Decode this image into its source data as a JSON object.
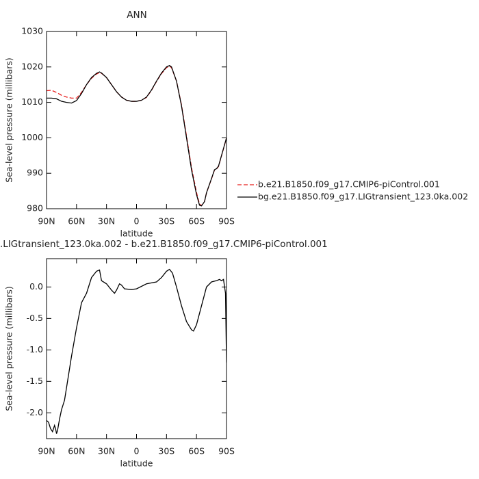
{
  "chart_data": [
    {
      "type": "line",
      "title": "ANN",
      "xlabel": "latitude",
      "ylabel": "Sea-level pressure (millibars)",
      "x": [
        90,
        85,
        80,
        75,
        70,
        65,
        60,
        55,
        50,
        45,
        40,
        37,
        35,
        30,
        25,
        20,
        15,
        10,
        5,
        0,
        -5,
        -10,
        -15,
        -20,
        -25,
        -30,
        -33,
        -35,
        -40,
        -45,
        -50,
        -55,
        -60,
        -63,
        -65,
        -68,
        -70,
        -75,
        -78,
        -80,
        -82,
        -85,
        -88,
        -90
      ],
      "series": [
        {
          "name": "b.e21.B1850.f09_g17.CMIP6-piControl.001",
          "color": "#e8201f",
          "dash": true,
          "values": [
            1013.3,
            1013.4,
            1012.8,
            1012,
            1011.5,
            1011.2,
            1011.2,
            1012.8,
            1015,
            1016.8,
            1018,
            1018.4,
            1018.2,
            1017,
            1015,
            1013,
            1011.5,
            1010.6,
            1010.3,
            1010.3,
            1010.6,
            1011.4,
            1013.4,
            1015.9,
            1018.1,
            1019.8,
            1020.2,
            1019.8,
            1016,
            1009.3,
            1000.5,
            991.6,
            984.6,
            981.3,
            980.9,
            982,
            984.5,
            988.4,
            990.9,
            991.2,
            991.9,
            994.9,
            997.9,
            1000
          ]
        },
        {
          "name": "bg.e21.B1850.f09_g17.LIGtransient_123.0ka.002",
          "color": "#000000",
          "dash": false,
          "values": [
            1011.2,
            1011.2,
            1011,
            1010.3,
            1010,
            1009.8,
            1010.5,
            1012.5,
            1015,
            1017,
            1018.2,
            1018.6,
            1018.3,
            1017,
            1015,
            1013,
            1011.5,
            1010.6,
            1010.3,
            1010.3,
            1010.6,
            1011.5,
            1013.5,
            1016,
            1018.3,
            1020,
            1020.4,
            1020,
            1016,
            1009,
            1000,
            991,
            984,
            981,
            980.8,
            982,
            984.5,
            988.5,
            991,
            991.3,
            992,
            995,
            998,
            1000
          ]
        }
      ],
      "xlim": [
        90,
        -90
      ],
      "xticks": [
        {
          "value": 90,
          "label": "90N"
        },
        {
          "value": 60,
          "label": "60N"
        },
        {
          "value": 30,
          "label": "30N"
        },
        0,
        {
          "value": -30,
          "label": "30S"
        },
        {
          "value": -60,
          "label": "60S"
        },
        {
          "value": -90,
          "label": "90S"
        }
      ],
      "ylim": [
        980,
        1030
      ],
      "yticks": [
        980,
        990,
        1000,
        1010,
        1020,
        1030
      ],
      "legend": "right"
    },
    {
      "type": "line",
      "title": ".LIGtransient_123.0ka.002 - b.e21.B1850.f09_g17.CMIP6-piControl.001",
      "xlabel": "latitude",
      "ylabel": "Sea-level pressure (millibars)",
      "x": [
        90,
        88,
        86,
        84,
        83,
        82,
        81,
        80,
        79,
        77,
        75,
        72,
        70,
        65,
        60,
        55,
        50,
        45,
        40,
        37,
        35,
        30,
        25,
        22,
        20,
        17,
        15,
        12,
        5,
        0,
        -10,
        -20,
        -25,
        -30,
        -33,
        -36,
        -40,
        -45,
        -50,
        -55,
        -57,
        -60,
        -65,
        -70,
        -75,
        -80,
        -83,
        -85,
        -87,
        -89,
        -90
      ],
      "series": [
        {
          "color": "#000000",
          "dash": false,
          "values": [
            -2.12,
            -2.15,
            -2.25,
            -2.3,
            -2.25,
            -2.2,
            -2.25,
            -2.33,
            -2.28,
            -2.1,
            -1.95,
            -1.8,
            -1.6,
            -1.1,
            -0.65,
            -0.25,
            -0.1,
            0.15,
            0.25,
            0.27,
            0.1,
            0.05,
            -0.05,
            -0.1,
            -0.05,
            0.05,
            0.03,
            -0.03,
            -0.04,
            -0.03,
            0.05,
            0.08,
            0.15,
            0.25,
            0.28,
            0.22,
            0,
            -0.3,
            -0.55,
            -0.68,
            -0.7,
            -0.6,
            -0.3,
            0,
            0.08,
            0.1,
            0.12,
            0.1,
            0.12,
            -0.1,
            -1.2
          ]
        }
      ],
      "xlim": [
        90,
        -90
      ],
      "xticks": [
        {
          "value": 90,
          "label": "90N"
        },
        {
          "value": 60,
          "label": "60N"
        },
        {
          "value": 30,
          "label": "30N"
        },
        0,
        {
          "value": -30,
          "label": "30S"
        },
        {
          "value": -60,
          "label": "60S"
        },
        {
          "value": -90,
          "label": "90S"
        }
      ],
      "ylim": [
        -2.41,
        0.45
      ],
      "yticks": [
        {
          "value": -2,
          "label": "-2.0"
        },
        -1.5,
        {
          "value": -1,
          "label": "-1.0"
        },
        -0.5,
        {
          "value": 0,
          "label": "0.0"
        }
      ]
    }
  ]
}
